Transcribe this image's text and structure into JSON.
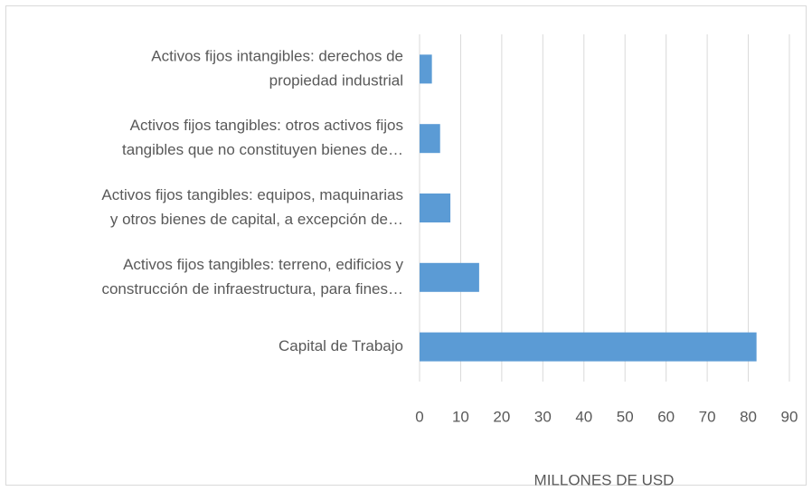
{
  "chart_data": {
    "type": "bar",
    "orientation": "horizontal",
    "categories": [
      [
        "Activos fijos intangibles: derechos de",
        "propiedad industrial"
      ],
      [
        "Activos fijos tangibles: otros activos fijos",
        "tangibles que no constituyen bienes de…"
      ],
      [
        "Activos fijos tangibles: equipos, maquinarias",
        "y otros bienes de capital, a excepción de…"
      ],
      [
        "Activos fijos tangibles: terreno, edificios y",
        "construcción de infraestructura, para fines…"
      ],
      [
        "Capital de Trabajo"
      ]
    ],
    "values": [
      3,
      5,
      7.5,
      14.5,
      82
    ],
    "color": "#5b9bd5",
    "x_label": "MILLONES DE USD",
    "xlim": [
      0,
      90
    ],
    "xticks": [
      0,
      10,
      20,
      30,
      40,
      50,
      60,
      70,
      80,
      90
    ],
    "grid": true
  }
}
